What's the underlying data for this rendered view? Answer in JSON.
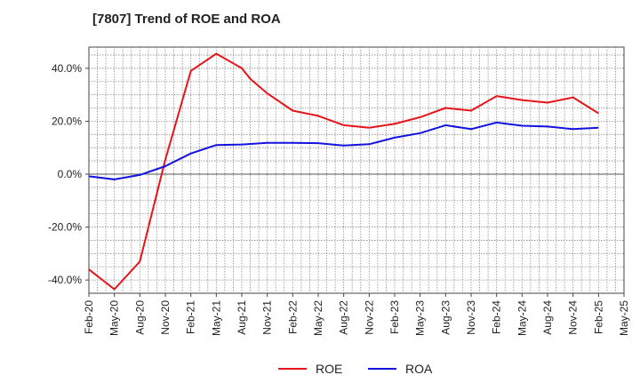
{
  "chart_data": {
    "type": "line",
    "title": "[7807]  Trend of ROE and ROA",
    "xlabel": "",
    "ylabel": "",
    "ylim": [
      -45,
      48
    ],
    "yticks": [
      -40,
      -20,
      0,
      20,
      40
    ],
    "ytick_labels": [
      "-40.0%",
      "-20.0%",
      "0.0%",
      "20.0%",
      "40.0%"
    ],
    "categories": [
      "Feb-20",
      "May-20",
      "Aug-20",
      "Nov-20",
      "Feb-21",
      "May-21",
      "Aug-21",
      "Nov-21",
      "Feb-22",
      "May-22",
      "Aug-22",
      "Nov-22",
      "Feb-23",
      "May-23",
      "Aug-23",
      "Nov-23",
      "Feb-24",
      "May-24",
      "Aug-24",
      "Nov-24",
      "Feb-25",
      "May-25"
    ],
    "grid": true,
    "legend_position": "bottom-center",
    "series": [
      {
        "name": "ROE",
        "color": "#e8141b",
        "x": [
          "Feb-20",
          "May-20",
          "Aug-20",
          "Nov-20",
          "Feb-21",
          "May-21",
          "Aug-21",
          "Sep-21",
          "Nov-21",
          "Feb-22",
          "May-22",
          "Aug-22",
          "Nov-22",
          "Feb-23",
          "May-23",
          "Aug-23",
          "Nov-23",
          "Feb-24",
          "May-24",
          "Aug-24",
          "Nov-24",
          "Feb-25"
        ],
        "values": [
          -36.0,
          -43.5,
          -33.0,
          5.5,
          39.0,
          45.5,
          40.0,
          36.0,
          30.5,
          24.0,
          22.0,
          18.5,
          17.5,
          19.0,
          21.5,
          25.0,
          24.0,
          29.5,
          28.0,
          27.0,
          29.0,
          23.0
        ]
      },
      {
        "name": "ROA",
        "color": "#1313e0",
        "x": [
          "Feb-20",
          "May-20",
          "Aug-20",
          "Nov-20",
          "Feb-21",
          "May-21",
          "Aug-21",
          "Sep-21",
          "Nov-21",
          "Feb-22",
          "May-22",
          "Aug-22",
          "Nov-22",
          "Feb-23",
          "May-23",
          "Aug-23",
          "Nov-23",
          "Feb-24",
          "May-24",
          "Aug-24",
          "Nov-24",
          "Feb-25"
        ],
        "values": [
          -0.8,
          -2.0,
          -0.3,
          3.0,
          7.8,
          11.0,
          11.2,
          11.4,
          11.8,
          11.8,
          11.7,
          10.8,
          11.3,
          13.8,
          15.5,
          18.5,
          17.0,
          19.5,
          18.3,
          18.0,
          17.0,
          17.5
        ]
      }
    ]
  }
}
